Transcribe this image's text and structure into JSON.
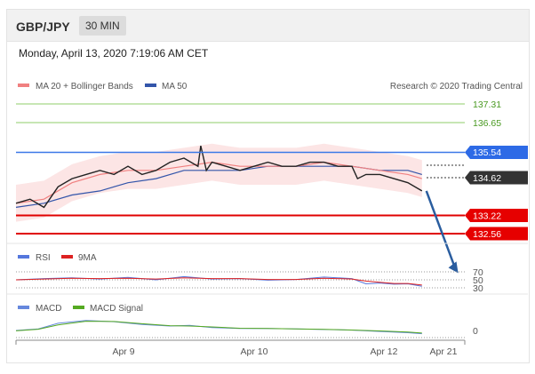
{
  "header": {
    "pair": "GBP/JPY",
    "timeframe": "30 MIN"
  },
  "timestamp": "Monday, April 13, 2020 7:19:06 AM CET",
  "legend": {
    "ma20_bb": "MA 20 + Bollinger Bands",
    "ma50": "MA 50",
    "credit": "Research © 2020 Trading Central"
  },
  "colors": {
    "ma20": "#f08080",
    "ma50": "#3355aa",
    "support": "#e00000",
    "resistance": "#8fcc6a",
    "pivot": "#3b78e7",
    "current": "#333333",
    "rsi": "#5577dd",
    "rsi_ma": "#dd2222",
    "macd": "#6688dd",
    "macd_signal": "#55aa22",
    "arrow": "#2a5d9f"
  },
  "levels": {
    "r2": "137.31",
    "r1": "136.65",
    "pivot": "135.54",
    "current": "134.62",
    "s1": "133.22",
    "s2": "132.56"
  },
  "rsi_panel": {
    "label": "RSI",
    "ma_label": "9MA",
    "ticks": [
      "70",
      "50",
      "30"
    ]
  },
  "macd_panel": {
    "label": "MACD",
    "signal_label": "MACD Signal",
    "tick": "0"
  },
  "x_axis": {
    "ticks": [
      "Apr 9",
      "Apr 10",
      "Apr 12",
      "Apr 21"
    ]
  },
  "chart_data": {
    "type": "line",
    "y_range": [
      131.9,
      138.0
    ],
    "price_path": [
      [
        0,
        134.3
      ],
      [
        5,
        134.4
      ],
      [
        10,
        134.2
      ],
      [
        15,
        134.7
      ],
      [
        20,
        134.9
      ],
      [
        25,
        135.0
      ],
      [
        30,
        135.1
      ],
      [
        35,
        135.0
      ],
      [
        40,
        135.2
      ],
      [
        45,
        135.0
      ],
      [
        50,
        135.1
      ],
      [
        55,
        135.3
      ],
      [
        60,
        135.4
      ],
      [
        65,
        135.2
      ],
      [
        66,
        135.7
      ],
      [
        68,
        135.1
      ],
      [
        70,
        135.3
      ],
      [
        75,
        135.2
      ],
      [
        80,
        135.1
      ],
      [
        85,
        135.2
      ],
      [
        90,
        135.3
      ],
      [
        95,
        135.2
      ],
      [
        100,
        135.2
      ],
      [
        105,
        135.3
      ],
      [
        110,
        135.3
      ],
      [
        115,
        135.2
      ],
      [
        120,
        135.2
      ],
      [
        122,
        134.9
      ],
      [
        125,
        135.0
      ],
      [
        130,
        135.0
      ],
      [
        135,
        134.9
      ],
      [
        140,
        134.8
      ],
      [
        145,
        134.6
      ]
    ],
    "ma20": [
      [
        0,
        134.3
      ],
      [
        10,
        134.4
      ],
      [
        20,
        134.8
      ],
      [
        30,
        135.0
      ],
      [
        40,
        135.1
      ],
      [
        50,
        135.1
      ],
      [
        60,
        135.2
      ],
      [
        70,
        135.3
      ],
      [
        80,
        135.2
      ],
      [
        90,
        135.2
      ],
      [
        100,
        135.2
      ],
      [
        110,
        135.3
      ],
      [
        120,
        135.2
      ],
      [
        130,
        135.1
      ],
      [
        140,
        135.0
      ],
      [
        145,
        134.9
      ]
    ],
    "ma50": [
      [
        0,
        134.2
      ],
      [
        10,
        134.3
      ],
      [
        20,
        134.5
      ],
      [
        30,
        134.6
      ],
      [
        40,
        134.8
      ],
      [
        50,
        134.9
      ],
      [
        60,
        135.1
      ],
      [
        70,
        135.1
      ],
      [
        80,
        135.1
      ],
      [
        90,
        135.2
      ],
      [
        100,
        135.2
      ],
      [
        110,
        135.2
      ],
      [
        120,
        135.2
      ],
      [
        130,
        135.1
      ],
      [
        140,
        135.1
      ],
      [
        145,
        135.0
      ]
    ],
    "projection": [
      [
        145,
        134.6
      ],
      [
        157,
        132.6
      ]
    ],
    "rsi": [
      [
        0,
        50
      ],
      [
        10,
        53
      ],
      [
        20,
        55
      ],
      [
        30,
        52
      ],
      [
        40,
        56
      ],
      [
        50,
        50
      ],
      [
        60,
        58
      ],
      [
        70,
        52
      ],
      [
        80,
        53
      ],
      [
        90,
        49
      ],
      [
        100,
        51
      ],
      [
        110,
        57
      ],
      [
        120,
        53
      ],
      [
        125,
        40
      ],
      [
        130,
        42
      ],
      [
        135,
        39
      ],
      [
        140,
        40
      ],
      [
        145,
        34
      ]
    ],
    "rsi_ma": [
      [
        0,
        50
      ],
      [
        10,
        52
      ],
      [
        20,
        54
      ],
      [
        30,
        53
      ],
      [
        40,
        54
      ],
      [
        50,
        52
      ],
      [
        60,
        55
      ],
      [
        70,
        53
      ],
      [
        80,
        53
      ],
      [
        90,
        51
      ],
      [
        100,
        51
      ],
      [
        110,
        54
      ],
      [
        120,
        52
      ],
      [
        125,
        47
      ],
      [
        130,
        44
      ],
      [
        135,
        41
      ],
      [
        140,
        41
      ],
      [
        145,
        37
      ]
    ],
    "macd": [
      [
        0,
        0.0
      ],
      [
        8,
        0.1
      ],
      [
        15,
        0.45
      ],
      [
        25,
        0.62
      ],
      [
        35,
        0.55
      ],
      [
        45,
        0.38
      ],
      [
        55,
        0.28
      ],
      [
        62,
        0.32
      ],
      [
        70,
        0.18
      ],
      [
        80,
        0.13
      ],
      [
        90,
        0.12
      ],
      [
        100,
        0.1
      ],
      [
        110,
        0.06
      ],
      [
        120,
        0.02
      ],
      [
        130,
        -0.06
      ],
      [
        140,
        -0.14
      ],
      [
        145,
        -0.2
      ]
    ],
    "macd_signal": [
      [
        0,
        -0.02
      ],
      [
        8,
        0.08
      ],
      [
        15,
        0.35
      ],
      [
        25,
        0.58
      ],
      [
        35,
        0.56
      ],
      [
        45,
        0.42
      ],
      [
        55,
        0.3
      ],
      [
        62,
        0.28
      ],
      [
        70,
        0.22
      ],
      [
        80,
        0.14
      ],
      [
        90,
        0.12
      ],
      [
        100,
        0.1
      ],
      [
        110,
        0.07
      ],
      [
        120,
        0.03
      ],
      [
        130,
        -0.03
      ],
      [
        140,
        -0.1
      ],
      [
        145,
        -0.16
      ]
    ]
  }
}
